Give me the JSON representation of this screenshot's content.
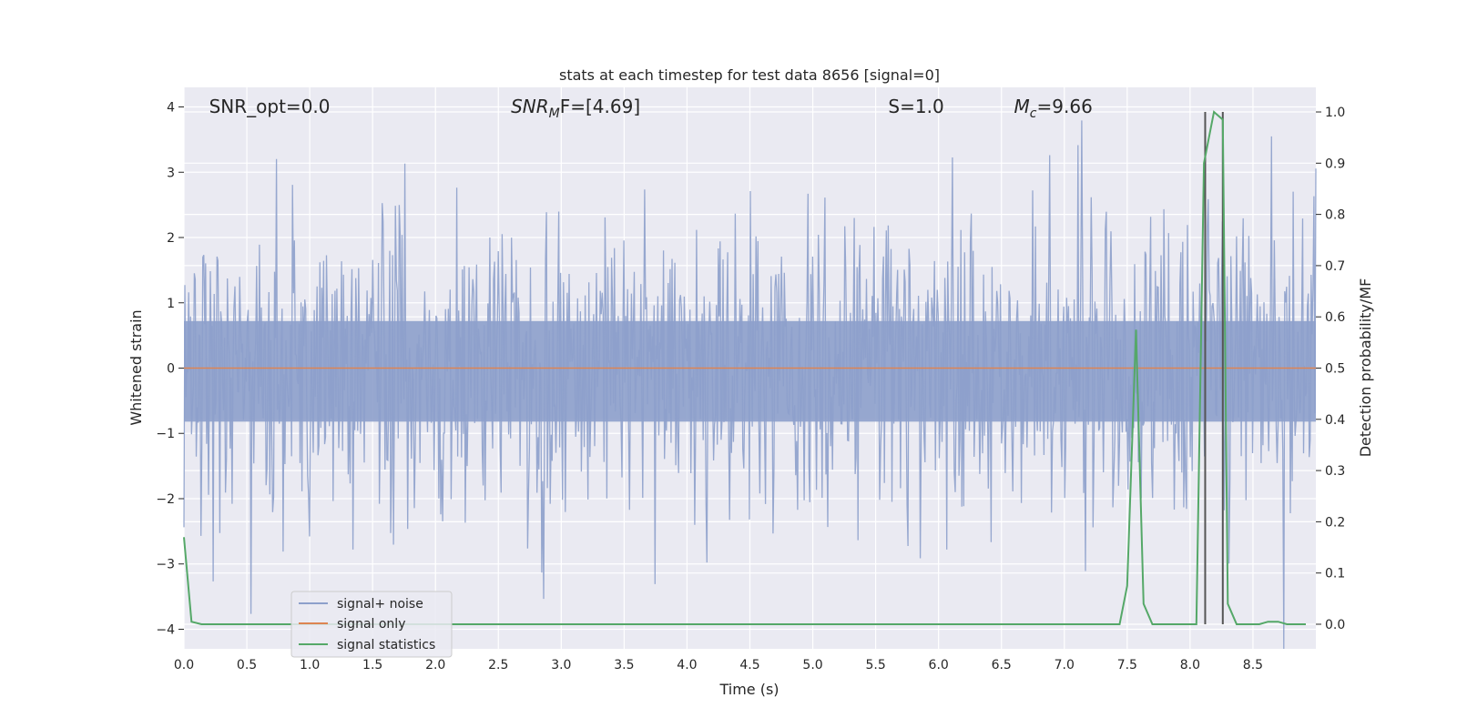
{
  "chart_data": {
    "type": "line",
    "title": "stats at each timestep for test data 8656 [signal=0]",
    "xlabel": "Time (s)",
    "ylabel_left": "Whitened strain",
    "ylabel_right": "Detection probability/MF",
    "xlim": [
      0,
      9.0
    ],
    "ylim_left": [
      -4.3,
      4.3
    ],
    "ylim_right": [
      -0.048,
      1.048
    ],
    "x_ticks": [
      "0.0",
      "0.5",
      "1.0",
      "1.5",
      "2.0",
      "2.5",
      "3.0",
      "3.5",
      "4.0",
      "4.5",
      "5.0",
      "5.5",
      "6.0",
      "6.5",
      "7.0",
      "7.5",
      "8.0",
      "8.5"
    ],
    "y_ticks_left": [
      "4",
      "3",
      "2",
      "1",
      "0",
      "−1",
      "−2",
      "−3",
      "−4"
    ],
    "y_ticks_right": [
      "1.0",
      "0.9",
      "0.8",
      "0.7",
      "0.6",
      "0.5",
      "0.4",
      "0.3",
      "0.2",
      "0.1",
      "0.0"
    ],
    "grid": true,
    "annotations": [
      {
        "label": "SNR_opt=0.0",
        "x": 0.2
      },
      {
        "label": "SNR",
        "sub": "M",
        "suffix": "F=[4.69]",
        "x": 2.6
      },
      {
        "label": "S",
        "suffix": "=1.0",
        "x": 5.6
      },
      {
        "label": "M",
        "sub": "c",
        "suffix": "=9.66",
        "x": 6.6
      }
    ],
    "vlines": [
      8.12,
      8.26
    ],
    "series": [
      {
        "name": "signal+ noise",
        "color": "#8da0cb",
        "kind": "noise",
        "sigma": 1.0,
        "n_samples": 1200
      },
      {
        "name": "signal only",
        "color": "#dd8452",
        "kind": "flat",
        "value": 0.0
      },
      {
        "name": "signal statistics",
        "color": "#55a868",
        "axis": "right",
        "x": [
          0.0,
          0.06,
          0.14,
          7.44,
          7.5,
          7.57,
          7.63,
          7.7,
          7.8,
          8.05,
          8.11,
          8.19,
          8.26,
          8.3,
          8.37,
          8.55,
          8.62,
          8.7,
          8.77,
          8.85,
          8.92
        ],
        "values": [
          0.17,
          0.005,
          0.0,
          0.0,
          0.075,
          0.575,
          0.04,
          0.0,
          0.0,
          0.0,
          0.9,
          1.0,
          0.985,
          0.04,
          0.0,
          0.0,
          0.005,
          0.005,
          0.0,
          0.0,
          0.0
        ]
      }
    ],
    "legend": {
      "position": "lower-left"
    }
  }
}
